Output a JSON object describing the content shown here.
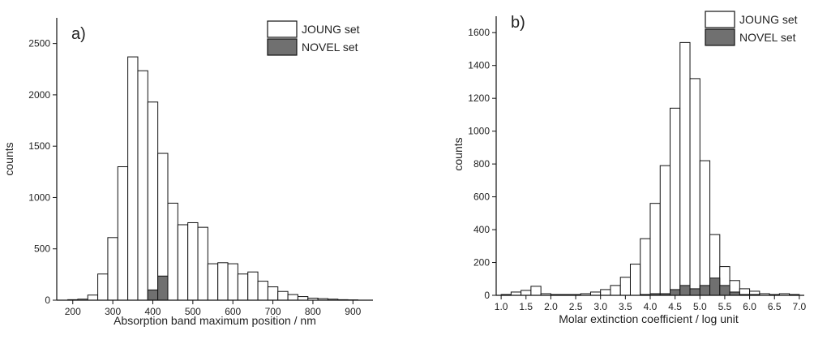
{
  "chart_data": [
    {
      "type": "bar",
      "panel_label": "a)",
      "xlabel": "Absorption band maximum position / nm",
      "ylabel": "counts",
      "xlim": [
        160,
        950
      ],
      "ylim": [
        0,
        2750
      ],
      "bin_width": 25,
      "xticks": [
        200,
        300,
        400,
        500,
        600,
        700,
        800,
        900
      ],
      "yticks": [
        0,
        500,
        1000,
        1500,
        2000,
        2500
      ],
      "legend_position": "top-right",
      "series": [
        {
          "name": "JOUNG set",
          "color": "#ffffff",
          "x": [
            200,
            225,
            250,
            275,
            300,
            325,
            350,
            375,
            400,
            425,
            450,
            475,
            500,
            525,
            550,
            575,
            600,
            625,
            650,
            675,
            700,
            725,
            750,
            775,
            800,
            825,
            850,
            875,
            900
          ],
          "values": [
            5,
            10,
            50,
            255,
            610,
            1300,
            2370,
            2235,
            1930,
            1430,
            945,
            735,
            755,
            710,
            355,
            365,
            355,
            255,
            275,
            185,
            130,
            85,
            55,
            35,
            20,
            15,
            10,
            5,
            3
          ]
        },
        {
          "name": "NOVEL set",
          "color": "#707070",
          "x": [
            400,
            425
          ],
          "values": [
            100,
            235
          ]
        }
      ]
    },
    {
      "type": "bar",
      "panel_label": "b)",
      "xlabel": "Molar extinction coefficient / log unit",
      "ylabel": "counts",
      "xlim": [
        0.9,
        7.1
      ],
      "ylim": [
        0,
        1700
      ],
      "bin_width": 0.2,
      "xticks": [
        1.0,
        1.5,
        2.0,
        2.5,
        3.0,
        3.5,
        4.0,
        4.5,
        5.0,
        5.5,
        6.0,
        6.5,
        7.0
      ],
      "yticks": [
        0,
        200,
        400,
        600,
        800,
        1000,
        1200,
        1400,
        1600
      ],
      "legend_position": "top-right",
      "series": [
        {
          "name": "JOUNG set",
          "color": "#ffffff",
          "x": [
            1.1,
            1.3,
            1.5,
            1.7,
            1.9,
            2.1,
            2.3,
            2.5,
            2.7,
            2.9,
            3.1,
            3.3,
            3.5,
            3.7,
            3.9,
            4.1,
            4.3,
            4.5,
            4.7,
            4.9,
            5.1,
            5.3,
            5.5,
            5.7,
            5.9,
            6.1,
            6.3,
            6.5,
            6.7,
            6.9
          ],
          "values": [
            5,
            20,
            30,
            55,
            10,
            5,
            5,
            5,
            10,
            20,
            35,
            60,
            110,
            190,
            345,
            560,
            790,
            1140,
            1540,
            1320,
            820,
            370,
            175,
            90,
            40,
            25,
            10,
            5,
            10,
            5
          ],
          "value_order": "bins"
        },
        {
          "name": "NOVEL set",
          "color": "#707070",
          "x": [
            3.9,
            4.1,
            4.3,
            4.5,
            4.7,
            4.9,
            5.1,
            5.3,
            5.5,
            5.7,
            5.9,
            6.1
          ],
          "values": [
            5,
            10,
            10,
            35,
            60,
            40,
            60,
            105,
            60,
            20,
            5,
            5
          ]
        }
      ]
    }
  ]
}
